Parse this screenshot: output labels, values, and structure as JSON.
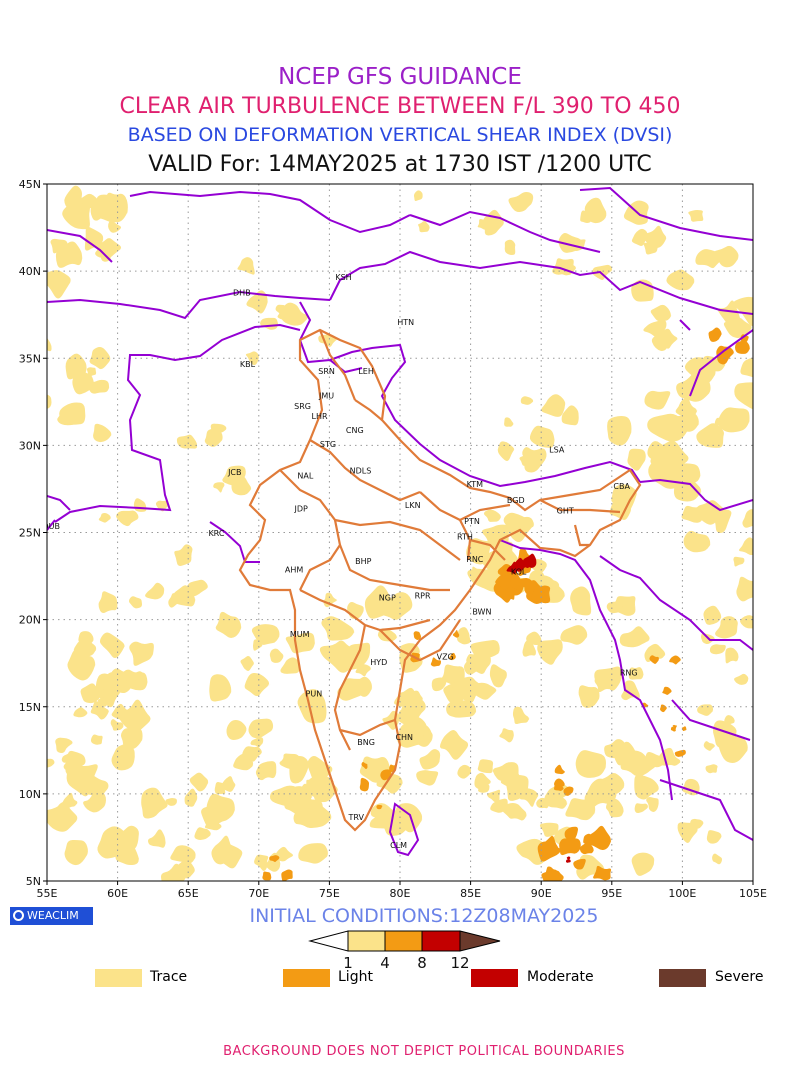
{
  "header": {
    "line1": "NCEP GFS GUIDANCE",
    "line2": "CLEAR AIR TURBULENCE BETWEEN F/L 390 TO 450",
    "line3": "BASED ON DEFORMATION VERTICAL SHEAR INDEX (DVSI)",
    "line4": "VALID For: 14MAY2025 at 1730 IST /1200 UTC"
  },
  "colors": {
    "line1": "#9b20c8",
    "line2": "#e0206f",
    "line3": "#2a49e0",
    "line4": "#111111",
    "trace": "#fbe38a",
    "light": "#f39b14",
    "moderate": "#c30000",
    "severe": "#6b3a2c",
    "boundary_purple": "#9400d3",
    "boundary_orange": "#e07b39",
    "footer": "#e0206f",
    "initial": "#6b83e8"
  },
  "axes": {
    "lat_ticks": [
      "45N",
      "40N",
      "35N",
      "30N",
      "25N",
      "20N",
      "15N",
      "10N",
      "5N"
    ],
    "lon_ticks": [
      "55E",
      "60E",
      "65E",
      "70E",
      "75E",
      "80E",
      "85E",
      "90E",
      "95E",
      "100E",
      "105E"
    ]
  },
  "stations": [
    {
      "code": "KSH",
      "lon": 76.0,
      "lat": 39.5
    },
    {
      "code": "DHB",
      "lon": 68.8,
      "lat": 38.6
    },
    {
      "code": "HTN",
      "lon": 80.4,
      "lat": 36.9
    },
    {
      "code": "KBL",
      "lon": 69.2,
      "lat": 34.5
    },
    {
      "code": "SRN",
      "lon": 74.8,
      "lat": 34.1
    },
    {
      "code": "LEH",
      "lon": 77.6,
      "lat": 34.1
    },
    {
      "code": "JMU",
      "lon": 74.8,
      "lat": 32.7
    },
    {
      "code": "SRG",
      "lon": 73.1,
      "lat": 32.1
    },
    {
      "code": "LHR",
      "lon": 74.3,
      "lat": 31.5
    },
    {
      "code": "CNG",
      "lon": 76.8,
      "lat": 30.7
    },
    {
      "code": "LSA",
      "lon": 91.1,
      "lat": 29.6
    },
    {
      "code": "STG",
      "lon": 74.9,
      "lat": 29.9
    },
    {
      "code": "JCB",
      "lon": 68.3,
      "lat": 28.3
    },
    {
      "code": "NAL",
      "lon": 73.3,
      "lat": 28.1
    },
    {
      "code": "NDLS",
      "lon": 77.2,
      "lat": 28.4
    },
    {
      "code": "KTM",
      "lon": 85.3,
      "lat": 27.6
    },
    {
      "code": "CBA",
      "lon": 95.7,
      "lat": 27.5
    },
    {
      "code": "BGD",
      "lon": 88.2,
      "lat": 26.7
    },
    {
      "code": "GHT",
      "lon": 91.7,
      "lat": 26.1
    },
    {
      "code": "JDP",
      "lon": 73.0,
      "lat": 26.2
    },
    {
      "code": "LKN",
      "lon": 80.9,
      "lat": 26.4
    },
    {
      "code": "PTN",
      "lon": 85.1,
      "lat": 25.5
    },
    {
      "code": "DUB",
      "lon": 55.3,
      "lat": 25.2
    },
    {
      "code": "RTH",
      "lon": 84.6,
      "lat": 24.6
    },
    {
      "code": "KRC",
      "lon": 67.0,
      "lat": 24.8
    },
    {
      "code": "BHP",
      "lon": 77.4,
      "lat": 23.2
    },
    {
      "code": "RNC",
      "lon": 85.3,
      "lat": 23.3
    },
    {
      "code": "AHM",
      "lon": 72.5,
      "lat": 22.7
    },
    {
      "code": "KOL",
      "lon": 88.4,
      "lat": 22.6
    },
    {
      "code": "NGP",
      "lon": 79.1,
      "lat": 21.1
    },
    {
      "code": "RPR",
      "lon": 81.6,
      "lat": 21.2
    },
    {
      "code": "BWN",
      "lon": 85.8,
      "lat": 20.3
    },
    {
      "code": "MUM",
      "lon": 72.9,
      "lat": 19.0
    },
    {
      "code": "HYD",
      "lon": 78.5,
      "lat": 17.4
    },
    {
      "code": "VZG",
      "lon": 83.2,
      "lat": 17.7
    },
    {
      "code": "RNG",
      "lon": 96.2,
      "lat": 16.8
    },
    {
      "code": "PUN",
      "lon": 73.9,
      "lat": 15.6
    },
    {
      "code": "CHN",
      "lon": 80.3,
      "lat": 13.1
    },
    {
      "code": "BNG",
      "lon": 77.6,
      "lat": 12.8
    },
    {
      "code": "TRV",
      "lon": 76.9,
      "lat": 8.5
    },
    {
      "code": "CLM",
      "lon": 79.9,
      "lat": 6.9
    }
  ],
  "brand": {
    "label": "WEACLIM",
    "icon": "circle-logo-icon"
  },
  "initial_conditions": "INITIAL CONDITIONS:12Z08MAY2025",
  "colorbar": {
    "labels": [
      "1",
      "4",
      "8",
      "12"
    ]
  },
  "legend": [
    {
      "label": "Trace"
    },
    {
      "label": "Light"
    },
    {
      "label": "Moderate"
    },
    {
      "label": "Severe"
    }
  ],
  "footer": "BACKGROUND DOES NOT DEPICT POLITICAL BOUNDARIES"
}
